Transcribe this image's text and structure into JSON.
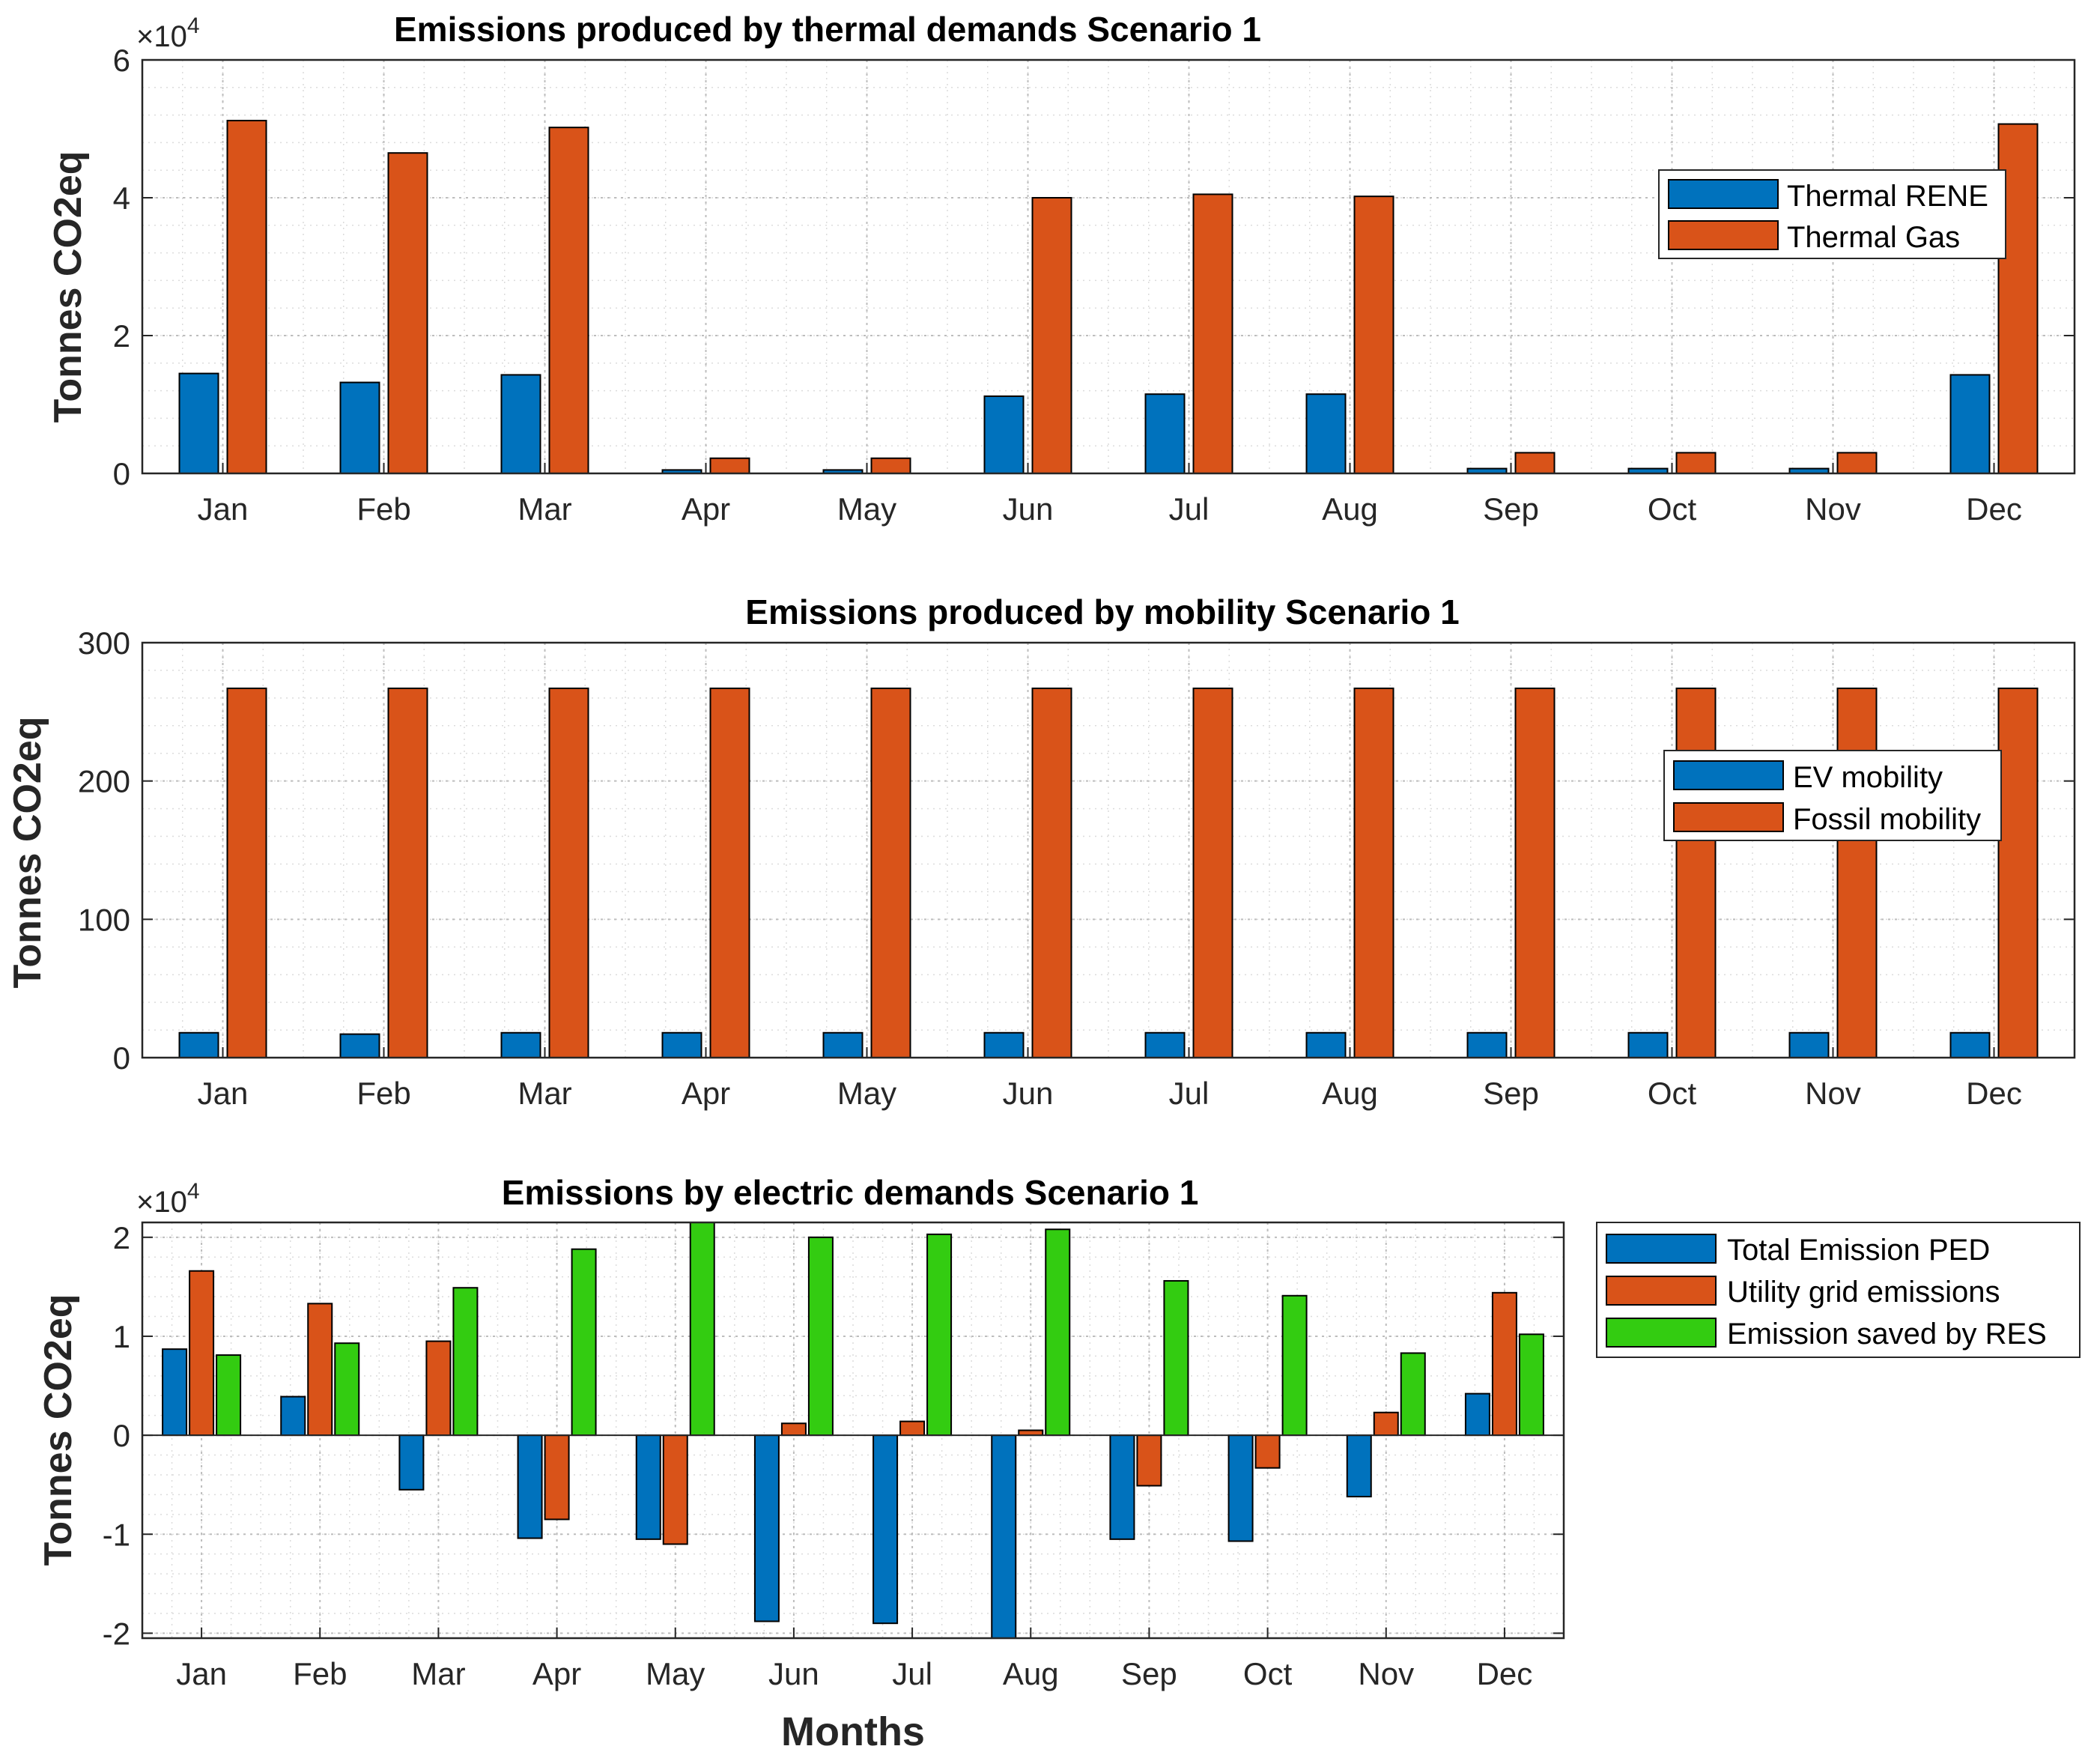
{
  "colors": {
    "blue": "#0072BD",
    "orange": "#D95319",
    "green": "#33CC11"
  },
  "chart_data": [
    {
      "type": "bar",
      "title": "Emissions produced by thermal demands Scenario 1",
      "xlabel": "",
      "ylabel": "Tonnes CO2eq",
      "exponent": "10",
      "exponent_power": "4",
      "exponent_times": "×",
      "categories": [
        "Jan",
        "Feb",
        "Mar",
        "Apr",
        "May",
        "Jun",
        "Jul",
        "Aug",
        "Sep",
        "Oct",
        "Nov",
        "Dec"
      ],
      "ylim": [
        0,
        6
      ],
      "yticks": [
        0,
        2,
        4,
        6
      ],
      "ytick_labels": [
        "0",
        "2",
        "4",
        "6"
      ],
      "legend_position": "top-right",
      "series": [
        {
          "name": "Thermal RENE",
          "color": "#0072BD",
          "values": [
            1.45,
            1.32,
            1.43,
            0.05,
            0.05,
            1.12,
            1.15,
            1.15,
            0.07,
            0.07,
            0.07,
            1.43
          ]
        },
        {
          "name": "Thermal Gas",
          "color": "#D95319",
          "values": [
            5.12,
            4.65,
            5.02,
            0.22,
            0.22,
            4.0,
            4.05,
            4.02,
            0.3,
            0.3,
            0.3,
            5.07
          ]
        }
      ]
    },
    {
      "type": "bar",
      "title": "Emissions produced by mobility Scenario 1",
      "xlabel": "",
      "ylabel": "Tonnes CO2eq",
      "exponent": "",
      "exponent_power": "",
      "exponent_times": "",
      "categories": [
        "Jan",
        "Feb",
        "Mar",
        "Apr",
        "May",
        "Jun",
        "Jul",
        "Aug",
        "Sep",
        "Oct",
        "Nov",
        "Dec"
      ],
      "ylim": [
        0,
        300
      ],
      "yticks": [
        0,
        100,
        200,
        300
      ],
      "ytick_labels": [
        "0",
        "100",
        "200",
        "300"
      ],
      "legend_position": "right",
      "series": [
        {
          "name": "EV mobility",
          "color": "#0072BD",
          "values": [
            18,
            17,
            18,
            18,
            18,
            18,
            18,
            18,
            18,
            18,
            18,
            18
          ]
        },
        {
          "name": "Fossil mobility",
          "color": "#D95319",
          "values": [
            267,
            267,
            267,
            267,
            267,
            267,
            267,
            267,
            267,
            267,
            267,
            267
          ]
        }
      ]
    },
    {
      "type": "bar",
      "title": "Emissions by electric demands Scenario 1",
      "xlabel": "Months",
      "ylabel": "Tonnes CO2eq",
      "exponent": "10",
      "exponent_power": "4",
      "exponent_times": "×",
      "categories": [
        "Jan",
        "Feb",
        "Mar",
        "Apr",
        "May",
        "Jun",
        "Jul",
        "Aug",
        "Sep",
        "Oct",
        "Nov",
        "Dec"
      ],
      "ylim": [
        -2.05,
        2.15
      ],
      "yticks": [
        -2,
        -1,
        0,
        1,
        2
      ],
      "ytick_labels": [
        "-2",
        "-1",
        "0",
        "1",
        "2"
      ],
      "legend_position": "outside-right",
      "series": [
        {
          "name": "Total Emission PED",
          "color": "#0072BD",
          "values": [
            0.87,
            0.39,
            -0.55,
            -1.04,
            -1.05,
            -1.88,
            -1.9,
            -2.05,
            -1.05,
            -1.07,
            -0.62,
            0.42
          ]
        },
        {
          "name": "Utility grid emissions",
          "color": "#D95319",
          "values": [
            1.66,
            1.33,
            0.95,
            -0.85,
            -1.1,
            0.12,
            0.14,
            0.05,
            -0.51,
            -0.33,
            0.23,
            1.44
          ]
        },
        {
          "name": "Emission saved by RES",
          "color": "#33CC11",
          "values": [
            0.81,
            0.93,
            1.49,
            1.88,
            2.15,
            2.0,
            2.03,
            2.08,
            1.56,
            1.41,
            0.83,
            1.02
          ]
        }
      ]
    }
  ]
}
